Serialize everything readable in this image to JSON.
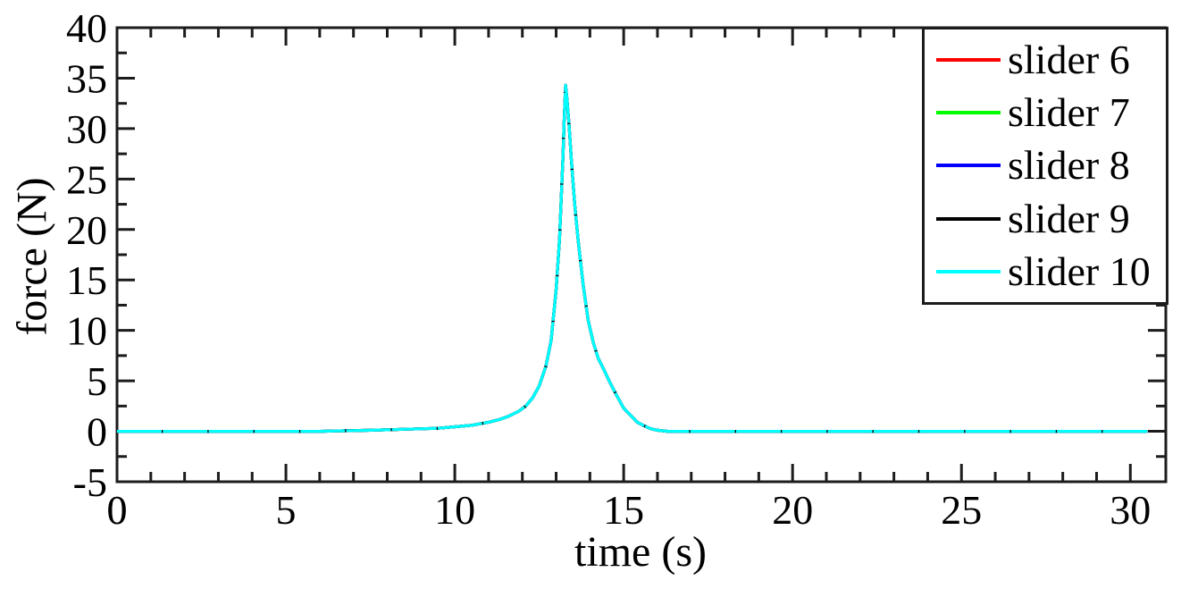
{
  "figure": {
    "background": "#ffffff",
    "text_color": "#000000",
    "axis_color": "#1c1c1c"
  },
  "chart_data": {
    "type": "line",
    "title": "",
    "xlabel": "time (s)",
    "ylabel": "force (N)",
    "xlim": [
      0,
      31.05
    ],
    "ylim": [
      -5,
      40
    ],
    "x_major_ticks": [
      0,
      5,
      10,
      15,
      20,
      25,
      30
    ],
    "x_minor_step": 1,
    "y_major_ticks": [
      -5,
      0,
      5,
      10,
      15,
      20,
      25,
      30,
      35,
      40
    ],
    "y_minor_step": 2.5,
    "grid": false,
    "legend_position": "top-right",
    "peak_time_s": 13.3,
    "peak_force_N": 34.3,
    "note": "All five series coincide exactly; slider 10 (cyan) is drawn last and covers the others except tiny dash gaps where the black/blue lines beneath peek through near the peak and on the baseline.",
    "x": [
      0,
      2,
      4,
      6,
      6.7,
      7.5,
      8.5,
      9.5,
      10,
      10.5,
      11,
      11.3,
      11.6,
      11.9,
      12.1,
      12.3,
      12.5,
      12.7,
      12.85,
      13.0,
      13.1,
      13.15,
      13.2,
      13.24,
      13.28,
      13.32,
      13.38,
      13.45,
      13.55,
      13.65,
      13.8,
      13.95,
      14.1,
      14.25,
      14.4,
      14.6,
      14.8,
      15.0,
      15.2,
      15.4,
      15.6,
      15.8,
      16.0,
      16.3,
      17,
      18,
      20,
      22,
      24,
      26,
      28,
      30,
      30.5
    ],
    "values_shared": [
      0,
      0,
      0,
      0,
      0.05,
      0.1,
      0.2,
      0.3,
      0.45,
      0.6,
      0.9,
      1.15,
      1.5,
      2.0,
      2.5,
      3.3,
      4.5,
      6.5,
      9,
      14,
      19,
      23,
      27,
      31,
      34.3,
      33,
      30.5,
      27,
      22.5,
      19,
      14.5,
      11,
      8.8,
      7.2,
      6.2,
      4.8,
      3.5,
      2.3,
      1.6,
      0.9,
      0.55,
      0.25,
      0.1,
      0,
      0,
      0,
      0,
      0,
      0,
      0,
      0,
      0,
      0
    ],
    "series": [
      {
        "name": "slider 6",
        "color": "#ff0000",
        "values_ref": "values_shared"
      },
      {
        "name": "slider 7",
        "color": "#00ff00",
        "values_ref": "values_shared"
      },
      {
        "name": "slider 8",
        "color": "#0000ff",
        "values_ref": "values_shared"
      },
      {
        "name": "slider 9",
        "color": "#000000",
        "values_ref": "values_shared"
      },
      {
        "name": "slider 10",
        "color": "#00ffff",
        "values_ref": "values_shared"
      }
    ]
  },
  "legend": {
    "entries": [
      {
        "label": "slider 6",
        "color": "#ff0000"
      },
      {
        "label": "slider 7",
        "color": "#00ff00"
      },
      {
        "label": "slider 8",
        "color": "#0000ff"
      },
      {
        "label": "slider 9",
        "color": "#000000"
      },
      {
        "label": "slider 10",
        "color": "#00ffff"
      }
    ]
  }
}
